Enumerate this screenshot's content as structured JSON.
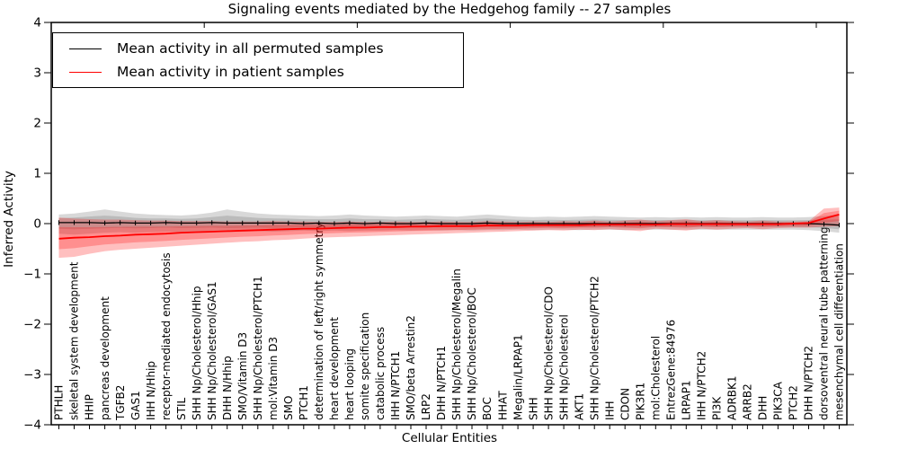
{
  "chart_data": {
    "type": "line",
    "title": "Signaling events mediated by the Hedgehog family -- 27 samples",
    "xlabel": "Cellular Entities",
    "ylabel": "Inferred Activity",
    "ylim": [
      -4,
      4
    ],
    "grid": false,
    "legend_position": "upper left",
    "legend": [
      {
        "label": "Mean activity in all permuted samples",
        "color": "#000000"
      },
      {
        "label": "Mean activity in patient samples",
        "color": "#ff0000"
      }
    ],
    "yticks": [
      {
        "value": 4,
        "label": "4"
      },
      {
        "value": 3,
        "label": "3"
      },
      {
        "value": 2,
        "label": "2"
      },
      {
        "value": 1,
        "label": "1"
      },
      {
        "value": 0,
        "label": "0"
      },
      {
        "value": -1,
        "label": "−1"
      },
      {
        "value": -2,
        "label": "−2"
      },
      {
        "value": -3,
        "label": "−3"
      },
      {
        "value": -4,
        "label": "−4"
      }
    ],
    "top_axis_tick_values": [
      10,
      20,
      30,
      40,
      50
    ],
    "x_numeric_range": [
      0,
      52
    ],
    "categories": [
      "PTHLH",
      "skeletal system development",
      "HHIP",
      "pancreas development",
      "TGFB2",
      "GAS1",
      "IHH N/Hhip",
      "receptor-mediated endocytosis",
      "STIL",
      "SHH Np/Cholesterol/Hhip",
      "SHH Np/Cholesterol/GAS1",
      "DHH N/Hhip",
      "SMO/Vitamin D3",
      "SHH Np/Cholesterol/PTCH1",
      "mol:Vitamin D3",
      "SMO",
      "PTCH1",
      "determination of left/right symmetry",
      "heart development",
      "heart looping",
      "somite specification",
      "catabolic process",
      "IHH N/PTCH1",
      "SMO/beta Arrestin2",
      "LRP2",
      "DHH N/PTCH1",
      "SHH Np/Cholesterol/Megalin",
      "SHH Np/Cholesterol/BOC",
      "BOC",
      "HHAT",
      "Megalin/LRPAP1",
      "SHH",
      "SHH Np/Cholesterol/CDO",
      "SHH Np/Cholesterol",
      "AKT1",
      "SHH Np/Cholesterol/PTCH2",
      "IHH",
      "CDON",
      "PIK3R1",
      "mol:Cholesterol",
      "EntrezGene:84976",
      "LRPAP1",
      "IHH N/PTCH2",
      "PI3K",
      "ADRBK1",
      "ARRB2",
      "DHH",
      "PIK3CA",
      "PTCH2",
      "DHH N/PTCH2",
      "dorsoventral neural tube patterning",
      "mesenchymal cell differentiation"
    ],
    "series": [
      {
        "name": "Mean activity in all permuted samples",
        "color": "#000000",
        "band_color": "#646464",
        "values": [
          0.02,
          0.02,
          0.02,
          0.01,
          0.02,
          0.01,
          0.01,
          0.02,
          0.01,
          0.01,
          0.02,
          0.01,
          0.01,
          0.01,
          0.01,
          0.01,
          0.0,
          0.01,
          0.0,
          0.01,
          0.0,
          0.01,
          0.0,
          0.0,
          0.01,
          0.0,
          0.0,
          0.0,
          0.01,
          0.0,
          0.0,
          0.0,
          0.0,
          0.0,
          0.0,
          0.0,
          0.0,
          0.0,
          0.0,
          0.0,
          0.0,
          0.0,
          0.0,
          0.0,
          0.0,
          0.0,
          0.0,
          0.0,
          0.0,
          0.0,
          -0.01,
          -0.03
        ],
        "band_hi": [
          0.18,
          0.2,
          0.24,
          0.28,
          0.24,
          0.2,
          0.18,
          0.17,
          0.16,
          0.18,
          0.22,
          0.28,
          0.24,
          0.2,
          0.18,
          0.17,
          0.16,
          0.15,
          0.16,
          0.18,
          0.16,
          0.15,
          0.14,
          0.15,
          0.16,
          0.15,
          0.14,
          0.16,
          0.18,
          0.16,
          0.14,
          0.13,
          0.14,
          0.13,
          0.14,
          0.15,
          0.14,
          0.13,
          0.12,
          0.13,
          0.12,
          0.13,
          0.12,
          0.13,
          0.12,
          0.12,
          0.13,
          0.12,
          0.12,
          0.13,
          0.15,
          0.18
        ],
        "band_lo": [
          -0.2,
          -0.22,
          -0.2,
          -0.18,
          -0.17,
          -0.18,
          -0.17,
          -0.16,
          -0.17,
          -0.16,
          -0.16,
          -0.17,
          -0.16,
          -0.15,
          -0.16,
          -0.15,
          -0.14,
          -0.15,
          -0.14,
          -0.15,
          -0.14,
          -0.14,
          -0.13,
          -0.14,
          -0.13,
          -0.14,
          -0.13,
          -0.14,
          -0.13,
          -0.13,
          -0.12,
          -0.13,
          -0.12,
          -0.12,
          -0.13,
          -0.12,
          -0.12,
          -0.13,
          -0.12,
          -0.12,
          -0.12,
          -0.12,
          -0.12,
          -0.12,
          -0.12,
          -0.12,
          -0.12,
          -0.12,
          -0.12,
          -0.13,
          -0.15,
          -0.18
        ]
      },
      {
        "name": "Mean activity in patient samples",
        "color": "#ff0000",
        "band_color": "#ff0000",
        "values": [
          -0.3,
          -0.28,
          -0.27,
          -0.25,
          -0.24,
          -0.22,
          -0.21,
          -0.2,
          -0.18,
          -0.17,
          -0.16,
          -0.15,
          -0.14,
          -0.13,
          -0.12,
          -0.11,
          -0.1,
          -0.1,
          -0.09,
          -0.08,
          -0.08,
          -0.07,
          -0.07,
          -0.06,
          -0.06,
          -0.05,
          -0.05,
          -0.05,
          -0.04,
          -0.04,
          -0.04,
          -0.03,
          -0.03,
          -0.03,
          -0.03,
          -0.02,
          -0.02,
          -0.02,
          -0.02,
          -0.02,
          -0.01,
          -0.01,
          -0.01,
          -0.01,
          -0.01,
          -0.01,
          -0.01,
          -0.01,
          0.0,
          0.01,
          0.1,
          0.18
        ],
        "band_hi": [
          0.12,
          0.1,
          0.09,
          0.08,
          0.08,
          0.07,
          0.06,
          0.06,
          0.05,
          0.05,
          0.05,
          0.04,
          0.04,
          0.04,
          0.05,
          0.04,
          0.04,
          0.03,
          0.03,
          0.04,
          0.03,
          0.03,
          0.04,
          0.03,
          0.03,
          0.04,
          0.03,
          0.03,
          0.05,
          0.04,
          0.03,
          0.04,
          0.03,
          0.05,
          0.04,
          0.06,
          0.04,
          0.06,
          0.08,
          0.05,
          0.07,
          0.09,
          0.05,
          0.07,
          0.05,
          0.04,
          0.06,
          0.04,
          0.04,
          0.05,
          0.3,
          0.32
        ],
        "band_lo": [
          -0.68,
          -0.66,
          -0.6,
          -0.55,
          -0.52,
          -0.5,
          -0.48,
          -0.46,
          -0.44,
          -0.42,
          -0.4,
          -0.38,
          -0.36,
          -0.35,
          -0.33,
          -0.32,
          -0.3,
          -0.28,
          -0.27,
          -0.26,
          -0.25,
          -0.24,
          -0.23,
          -0.22,
          -0.21,
          -0.2,
          -0.19,
          -0.18,
          -0.17,
          -0.16,
          -0.15,
          -0.14,
          -0.13,
          -0.14,
          -0.12,
          -0.13,
          -0.11,
          -0.13,
          -0.15,
          -0.1,
          -0.12,
          -0.14,
          -0.1,
          -0.12,
          -0.1,
          -0.09,
          -0.11,
          -0.09,
          -0.08,
          -0.08,
          -0.06,
          -0.05
        ]
      }
    ]
  }
}
